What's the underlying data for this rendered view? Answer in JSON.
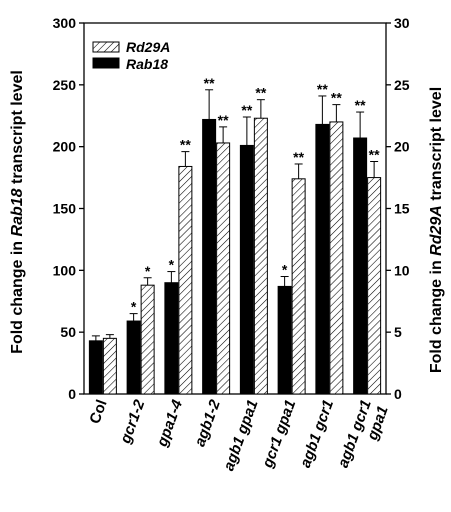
{
  "chart_data": {
    "type": "bar",
    "categories": [
      {
        "lines": [
          "Col"
        ],
        "italic": false
      },
      {
        "lines": [
          "gcr1-2"
        ],
        "italic": true
      },
      {
        "lines": [
          "gpa1-4"
        ],
        "italic": true
      },
      {
        "lines": [
          "agb1-2"
        ],
        "italic": true
      },
      {
        "lines": [
          "agb1 gpa1"
        ],
        "italic": true
      },
      {
        "lines": [
          "gcr1 gpa1"
        ],
        "italic": true
      },
      {
        "lines": [
          "agb1 gcr1"
        ],
        "italic": true
      },
      {
        "lines": [
          "agb1 gcr1",
          "gpa1"
        ],
        "italic": true
      }
    ],
    "ylabel_left_prefix": "Fold change in ",
    "ylabel_left_gene": "Rab18",
    "ylabel_left_suffix": " transcript level",
    "ylabel_right_prefix": "Fold change in ",
    "ylabel_right_gene": "Rd29A",
    "ylabel_right_suffix": " transcript level",
    "ylim_left": [
      0,
      300
    ],
    "ylim_right": [
      0,
      30
    ],
    "yticks_left": [
      "0",
      "50",
      "100",
      "150",
      "200",
      "250",
      "300"
    ],
    "yticks_right": [
      "0",
      "5",
      "10",
      "15",
      "20",
      "25",
      "30"
    ],
    "legend_position": "top-left",
    "series": [
      {
        "name": "Rab18",
        "axis": "left",
        "pattern": "solid",
        "color": "#000000",
        "values": [
          43,
          59,
          90,
          222,
          201,
          87,
          218,
          207
        ],
        "errors": [
          4,
          6,
          9,
          24,
          23,
          8,
          23,
          21
        ],
        "significance": [
          "",
          "*",
          "*",
          "**",
          "**",
          "*",
          "**",
          "**"
        ]
      },
      {
        "name": "Rd29A",
        "axis": "right",
        "pattern": "hatched",
        "color": "#ffffff",
        "values": [
          4.5,
          8.8,
          18.4,
          20.3,
          22.3,
          17.4,
          22.0,
          17.5
        ],
        "errors": [
          0.3,
          0.6,
          1.2,
          1.3,
          1.5,
          1.2,
          1.4,
          1.3
        ],
        "significance": [
          "",
          "*",
          "**",
          "**",
          "**",
          "**",
          "**",
          "**"
        ]
      }
    ]
  }
}
